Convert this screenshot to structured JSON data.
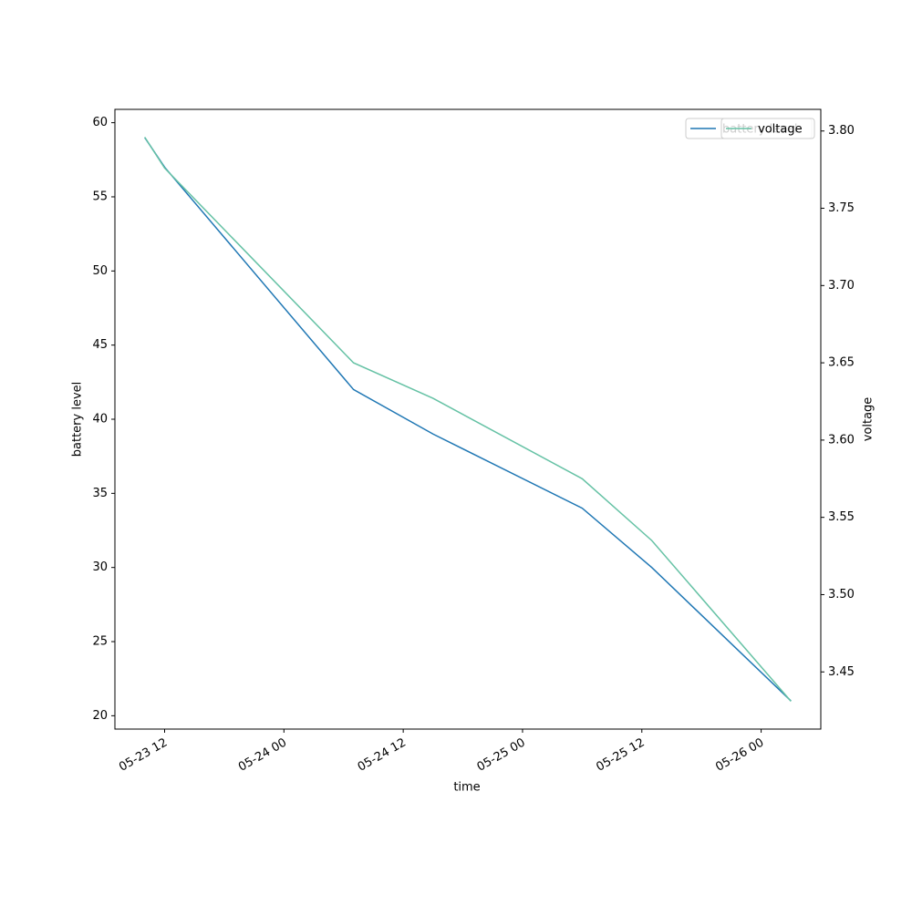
{
  "chart_data": {
    "type": "line",
    "x_label": "time",
    "y_label": "battery level",
    "y2_label": "voltage",
    "x": [
      "05-23 10",
      "05-23 12",
      "05-24 07",
      "05-24 15",
      "05-25 06",
      "05-25 13",
      "05-26 03"
    ],
    "xlim": [
      "05-23 07",
      "05-26 06"
    ],
    "xticks": [
      "05-23 12",
      "05-24 00",
      "05-24 12",
      "05-25 00",
      "05-25 12",
      "05-26 00"
    ],
    "ylim": [
      19.1,
      60.9
    ],
    "yticks": [
      20,
      25,
      30,
      35,
      40,
      45,
      50,
      55,
      60
    ],
    "y2lim": [
      3.413,
      3.814
    ],
    "y2ticks": [
      3.45,
      {
        "value": 3.5,
        "label": "3.50"
      },
      3.55,
      {
        "value": 3.6,
        "label": "3.60"
      },
      3.65,
      {
        "value": 3.7,
        "label": "3.70"
      },
      3.75,
      {
        "value": 3.8,
        "label": "3.80"
      }
    ],
    "legend": "upper right",
    "series": [
      {
        "name": "battery level",
        "color": "#1f77b4",
        "values": [
          59,
          57,
          42,
          39,
          34,
          30,
          21
        ]
      },
      {
        "name": "voltage",
        "color": "#66c2a5",
        "axis": "y2",
        "values": [
          3.796,
          3.776,
          3.65,
          3.627,
          3.575,
          3.535,
          3.431
        ]
      }
    ]
  }
}
